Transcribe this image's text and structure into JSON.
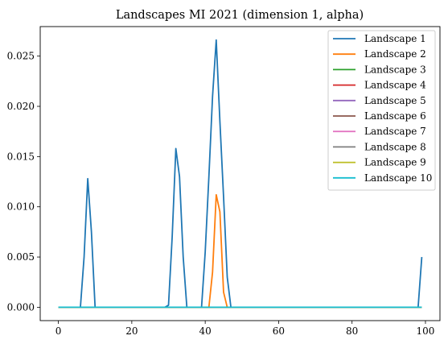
{
  "chart_data": {
    "type": "line",
    "title": "Landscapes MI 2021 (dimension 1, alpha)",
    "xlabel": "",
    "ylabel": "",
    "xlim": [
      -4.95,
      103.95
    ],
    "ylim": [
      -0.00133,
      0.02794
    ],
    "x_ticks": [
      0,
      20,
      40,
      60,
      80,
      100
    ],
    "x_tick_labels": [
      "0",
      "20",
      "40",
      "60",
      "80",
      "100"
    ],
    "y_ticks": [
      0.0,
      0.005,
      0.01,
      0.015,
      0.02,
      0.025
    ],
    "y_tick_labels": [
      "0.000",
      "0.005",
      "0.010",
      "0.015",
      "0.020",
      "0.025"
    ],
    "grid": false,
    "legend_position": "top-right",
    "series": [
      {
        "name": "Landscape 1",
        "color": "#1f77b4",
        "points": [
          [
            0,
            0
          ],
          [
            1,
            0
          ],
          [
            2,
            0
          ],
          [
            3,
            0
          ],
          [
            4,
            0
          ],
          [
            5,
            0
          ],
          [
            6,
            0
          ],
          [
            7,
            0.005
          ],
          [
            8,
            0.0128
          ],
          [
            9,
            0.0075
          ],
          [
            10,
            0
          ],
          [
            11,
            0
          ],
          [
            12,
            0
          ],
          [
            13,
            0
          ],
          [
            14,
            0
          ],
          [
            15,
            0
          ],
          [
            16,
            0
          ],
          [
            17,
            0
          ],
          [
            18,
            0
          ],
          [
            19,
            0
          ],
          [
            20,
            0
          ],
          [
            21,
            0
          ],
          [
            22,
            0
          ],
          [
            23,
            0
          ],
          [
            24,
            0
          ],
          [
            25,
            0
          ],
          [
            26,
            0
          ],
          [
            27,
            0
          ],
          [
            28,
            0
          ],
          [
            29,
            0
          ],
          [
            30,
            0.0002
          ],
          [
            31,
            0.007
          ],
          [
            32,
            0.0158
          ],
          [
            33,
            0.013
          ],
          [
            34,
            0.005
          ],
          [
            35,
            0
          ],
          [
            36,
            0
          ],
          [
            37,
            0
          ],
          [
            38,
            0
          ],
          [
            39,
            0
          ],
          [
            40,
            0.0055
          ],
          [
            41,
            0.013
          ],
          [
            42,
            0.021
          ],
          [
            43,
            0.0266
          ],
          [
            44,
            0.0185
          ],
          [
            45,
            0.011
          ],
          [
            46,
            0.003
          ],
          [
            47,
            0
          ],
          [
            48,
            0
          ],
          [
            49,
            0
          ],
          [
            50,
            0
          ],
          [
            51,
            0
          ],
          [
            52,
            0
          ],
          [
            53,
            0
          ],
          [
            54,
            0
          ],
          [
            55,
            0
          ],
          [
            56,
            0
          ],
          [
            57,
            0
          ],
          [
            58,
            0
          ],
          [
            59,
            0
          ],
          [
            60,
            0
          ],
          [
            61,
            0
          ],
          [
            62,
            0
          ],
          [
            63,
            0
          ],
          [
            64,
            0
          ],
          [
            65,
            0
          ],
          [
            66,
            0
          ],
          [
            67,
            0
          ],
          [
            68,
            0
          ],
          [
            69,
            0
          ],
          [
            70,
            0
          ],
          [
            71,
            0
          ],
          [
            72,
            0
          ],
          [
            73,
            0
          ],
          [
            74,
            0
          ],
          [
            75,
            0
          ],
          [
            76,
            0
          ],
          [
            77,
            0
          ],
          [
            78,
            0
          ],
          [
            79,
            0
          ],
          [
            80,
            0
          ],
          [
            81,
            0
          ],
          [
            82,
            0
          ],
          [
            83,
            0
          ],
          [
            84,
            0
          ],
          [
            85,
            0
          ],
          [
            86,
            0
          ],
          [
            87,
            0
          ],
          [
            88,
            0
          ],
          [
            89,
            0
          ],
          [
            90,
            0
          ],
          [
            91,
            0
          ],
          [
            92,
            0
          ],
          [
            93,
            0
          ],
          [
            94,
            0
          ],
          [
            95,
            0
          ],
          [
            96,
            0
          ],
          [
            97,
            0
          ],
          [
            98,
            0
          ],
          [
            99,
            0.005
          ]
        ]
      },
      {
        "name": "Landscape 2",
        "color": "#ff7f0e",
        "points": [
          [
            0,
            0
          ],
          [
            10,
            0
          ],
          [
            20,
            0
          ],
          [
            30,
            0
          ],
          [
            40,
            0
          ],
          [
            41,
            0
          ],
          [
            42,
            0.0035
          ],
          [
            43,
            0.0112
          ],
          [
            44,
            0.0095
          ],
          [
            45,
            0.0015
          ],
          [
            46,
            0
          ],
          [
            47,
            0
          ],
          [
            60,
            0
          ],
          [
            80,
            0
          ],
          [
            99,
            0
          ]
        ]
      },
      {
        "name": "Landscape 3",
        "color": "#2ca02c",
        "points": [
          [
            0,
            0
          ],
          [
            99,
            0
          ]
        ]
      },
      {
        "name": "Landscape 4",
        "color": "#d62728",
        "points": [
          [
            0,
            0
          ],
          [
            99,
            0
          ]
        ]
      },
      {
        "name": "Landscape 5",
        "color": "#9467bd",
        "points": [
          [
            0,
            0
          ],
          [
            99,
            0
          ]
        ]
      },
      {
        "name": "Landscape 6",
        "color": "#8c564b",
        "points": [
          [
            0,
            0
          ],
          [
            99,
            0
          ]
        ]
      },
      {
        "name": "Landscape 7",
        "color": "#e377c2",
        "points": [
          [
            0,
            0
          ],
          [
            99,
            0
          ]
        ]
      },
      {
        "name": "Landscape 8",
        "color": "#7f7f7f",
        "points": [
          [
            0,
            0
          ],
          [
            99,
            0
          ]
        ]
      },
      {
        "name": "Landscape 9",
        "color": "#bcbd22",
        "points": [
          [
            0,
            0
          ],
          [
            99,
            0
          ]
        ]
      },
      {
        "name": "Landscape 10",
        "color": "#17becf",
        "points": [
          [
            0,
            0
          ],
          [
            99,
            0
          ]
        ]
      }
    ]
  }
}
